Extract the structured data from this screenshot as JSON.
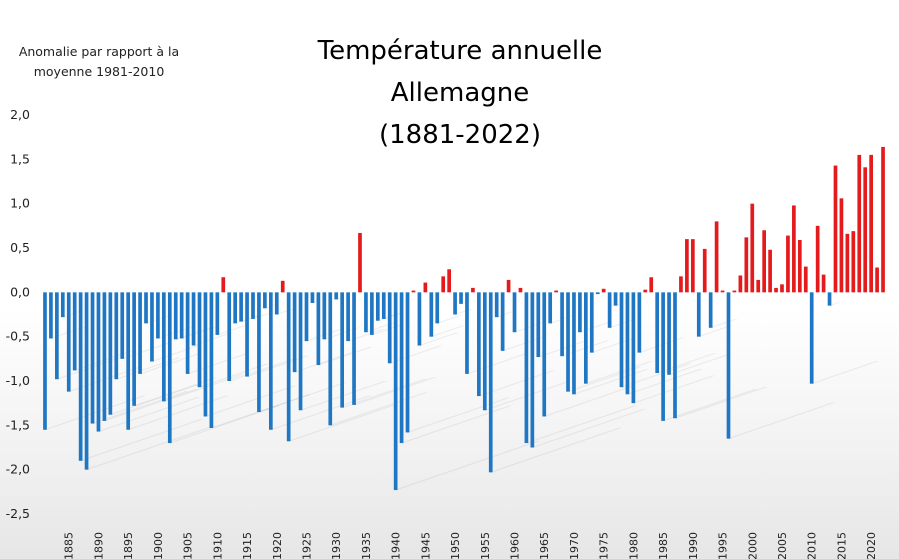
{
  "chart_data": {
    "type": "bar",
    "title_lines": [
      "Température annuelle",
      "Allemagne",
      "(1881-2022)"
    ],
    "ylabel_lines": [
      "Anomalie par rapport à la",
      "moyenne 1981-2010"
    ],
    "ylim": [
      -2.5,
      2.0
    ],
    "y_ticks": [
      "2,0",
      "1,5",
      "1,0",
      "0,5",
      "0,0",
      "-0,5",
      "-1,0",
      "-1,5",
      "-2,0",
      "-2,5"
    ],
    "x_ticks": [
      "1885",
      "1890",
      "1895",
      "1900",
      "1905",
      "1910",
      "1915",
      "1920",
      "1925",
      "1930",
      "1935",
      "1940",
      "1945",
      "1950",
      "1955",
      "1960",
      "1965",
      "1970",
      "1975",
      "1980",
      "1985",
      "1990",
      "1995",
      "2000",
      "2005",
      "2010",
      "2015",
      "2020"
    ],
    "x_start": 1881,
    "x_end": 2022,
    "positive_color": "#e41a1c",
    "negative_color": "#1f77c4",
    "values": [
      -1.55,
      -0.52,
      -0.98,
      -0.28,
      -1.12,
      -0.88,
      -1.9,
      -2.0,
      -1.48,
      -1.57,
      -1.45,
      -1.38,
      -0.98,
      -0.75,
      -1.55,
      -1.28,
      -0.92,
      -0.35,
      -0.78,
      -0.52,
      -1.23,
      -1.7,
      -0.53,
      -0.52,
      -0.92,
      -0.6,
      -1.07,
      -1.4,
      -1.53,
      -0.48,
      0.17,
      -1.0,
      -0.35,
      -0.33,
      -0.95,
      -0.3,
      -1.35,
      -0.18,
      -1.55,
      -0.25,
      0.13,
      -1.68,
      -0.9,
      -1.33,
      -0.55,
      -0.12,
      -0.82,
      -0.53,
      -1.5,
      -0.08,
      -1.3,
      -0.55,
      -1.27,
      0.67,
      -0.45,
      -0.48,
      -0.32,
      -0.3,
      -0.8,
      -2.23,
      -1.7,
      -1.58,
      0.02,
      -0.6,
      0.11,
      -0.5,
      -0.35,
      0.18,
      0.26,
      -0.25,
      -0.13,
      -0.92,
      0.05,
      -1.17,
      -1.33,
      -2.03,
      -0.28,
      -0.66,
      0.14,
      -0.45,
      0.05,
      -1.7,
      -1.75,
      -0.73,
      -1.4,
      -0.35,
      0.02,
      -0.72,
      -1.12,
      -1.15,
      -0.45,
      -1.03,
      -0.68,
      -0.02,
      0.04,
      -0.4,
      -0.15,
      -1.07,
      -1.15,
      -1.25,
      -0.68,
      0.03,
      0.17,
      -0.91,
      -1.45,
      -0.93,
      -1.42,
      0.18,
      0.6,
      0.6,
      -0.5,
      0.49,
      -0.4,
      0.8,
      0.02,
      -1.65,
      0.02,
      0.19,
      0.62,
      1.0,
      0.14,
      0.7,
      0.48,
      0.05,
      0.09,
      0.64,
      0.98,
      0.59,
      0.29,
      -1.03,
      0.75,
      0.2,
      -0.15,
      1.43,
      1.06,
      0.66,
      0.69,
      1.55,
      1.41,
      1.55,
      0.28,
      1.64
    ]
  }
}
